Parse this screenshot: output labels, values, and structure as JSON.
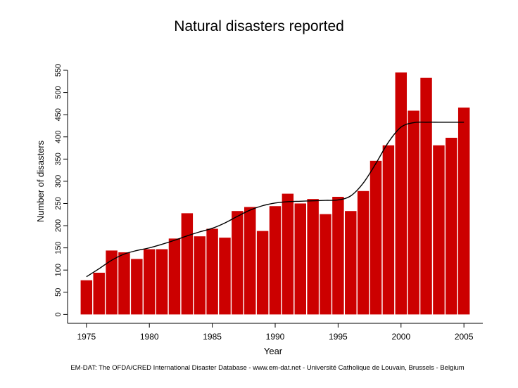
{
  "chart_data": {
    "type": "bar",
    "title": "Natural disasters reported",
    "xlabel": "Year",
    "ylabel": "Number of disasters",
    "source": "EM-DAT: The OFDA/CRED International Disaster Database - www.em-dat.net - Université Catholique  de Louvain, Brussels - Belgium",
    "bar_color": "#cc0000",
    "trend_color": "#000000",
    "x_ticks": [
      "1975",
      "1980",
      "1985",
      "1990",
      "1995",
      "2000",
      "2005"
    ],
    "y_ticks": [
      "0",
      "50",
      "100",
      "150",
      "200",
      "250",
      "300",
      "350",
      "400",
      "450",
      "500",
      "550"
    ],
    "xlim": [
      1973.5,
      2006.5
    ],
    "ylim": [
      -20,
      550
    ],
    "series": [
      {
        "type": "bar",
        "x": [
          1975,
          1976,
          1977,
          1978,
          1979,
          1980,
          1981,
          1982,
          1983,
          1984,
          1985,
          1986,
          1987,
          1988,
          1989,
          1990,
          1991,
          1992,
          1993,
          1994,
          1995,
          1996,
          1997,
          1998,
          1999,
          2000,
          2001,
          2002,
          2003,
          2004,
          2005
        ],
        "values": [
          77,
          94,
          144,
          140,
          125,
          147,
          147,
          171,
          228,
          176,
          193,
          173,
          233,
          242,
          188,
          244,
          272,
          250,
          260,
          226,
          265,
          233,
          278,
          346,
          381,
          545,
          459,
          533,
          381,
          398,
          466
        ]
      },
      {
        "type": "line",
        "x": [
          1975,
          1976,
          1977,
          1978,
          1979,
          1980,
          1981,
          1982,
          1983,
          1984,
          1985,
          1986,
          1987,
          1988,
          1989,
          1990,
          1991,
          1992,
          1993,
          1994,
          1995,
          1996,
          1997,
          1998,
          1999,
          2000,
          2001,
          2002,
          2003,
          2004,
          2005
        ],
        "values": [
          85,
          103,
          122,
          136,
          144,
          150,
          158,
          167,
          177,
          186,
          194,
          206,
          221,
          235,
          245,
          251,
          254,
          255,
          256,
          257,
          258,
          267,
          296,
          340,
          388,
          422,
          432,
          433,
          433,
          433,
          433
        ]
      }
    ]
  }
}
